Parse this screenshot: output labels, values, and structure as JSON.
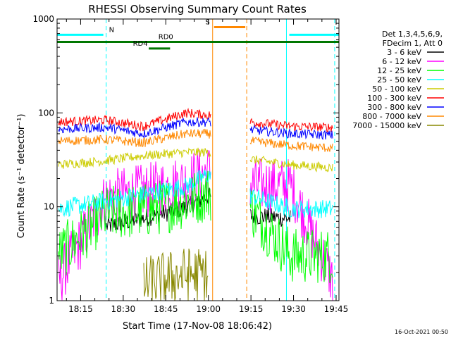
{
  "chart_data": {
    "type": "line",
    "title": "RHESSI Observing Summary Count Rates",
    "xlabel": "Start Time (17-Nov-08 18:06:42)",
    "ylabel": "Count Rate (s⁻¹ detector⁻¹)",
    "y_scale": "log",
    "ylim": [
      1,
      1000
    ],
    "xlim": [
      "18:06:42",
      "19:46:00"
    ],
    "y_ticks": [
      "1",
      "10",
      "100",
      "1000"
    ],
    "x_ticks": [
      "18:15",
      "18:30",
      "18:45",
      "19:00",
      "19:15",
      "19:30",
      "19:45"
    ],
    "legend_position": "right",
    "legend_header": [
      "Det 1,3,4,5,6,9,",
      "FDecim 1, Att 0"
    ],
    "footer": "16-Oct-2021 00:50",
    "flags": [
      {
        "label": "N",
        "color": "#00ffff",
        "segments": [
          [
            "18:06:42",
            "18:23:00"
          ],
          [
            "19:28:30",
            "19:46:00"
          ]
        ],
        "level": 680
      },
      {
        "label": "S",
        "color": "#ff8800",
        "segments": [
          [
            "19:02:00",
            "19:13:00"
          ]
        ],
        "level": 820
      },
      {
        "label": "RD0",
        "color": "#007700",
        "segments": [
          [
            "18:06:42",
            "19:46:00"
          ]
        ],
        "level": 570
      },
      {
        "label": "RD4",
        "color": "#007700",
        "segments": [
          [
            "18:39:00",
            "18:46:30"
          ]
        ],
        "level": 485
      }
    ],
    "vertical_lines": [
      {
        "time": "18:24:00",
        "color": "#00ffff",
        "style": "dashed"
      },
      {
        "time": "19:27:30",
        "color": "#00ffff",
        "style": "solid"
      },
      {
        "time": "19:44:30",
        "color": "#00ffff",
        "style": "dashed"
      },
      {
        "time": "19:01:30",
        "color": "#ff8800",
        "style": "solid"
      },
      {
        "time": "19:13:30",
        "color": "#ff8800",
        "style": "dashed"
      }
    ],
    "x": [
      "18:07",
      "18:24",
      "18:37",
      "18:52",
      "19:00",
      "19:15",
      "19:29",
      "19:44"
    ],
    "series": [
      {
        "name": "3 - 6 keV",
        "color": "#000000",
        "values": [
          null,
          6.2,
          7.5,
          9.8,
          13,
          8.0,
          7.5,
          null
        ]
      },
      {
        "name": "6 - 12 keV",
        "color": "#ff00ff",
        "values": [
          1.6,
          12.5,
          14.5,
          18.5,
          24,
          17,
          17,
          1.6
        ]
      },
      {
        "name": "12 - 25 keV",
        "color": "#00ff00",
        "values": [
          3.0,
          8.5,
          9.0,
          11.5,
          14,
          9.5,
          3.0,
          3.0
        ]
      },
      {
        "name": "25 - 50 keV",
        "color": "#00ffff",
        "values": [
          9.5,
          11.5,
          13.5,
          16.5,
          22,
          13,
          9.5,
          9.5
        ]
      },
      {
        "name": "50 - 100 keV",
        "color": "#cccc00",
        "values": [
          28,
          31,
          35,
          38,
          38,
          32,
          28,
          26
        ]
      },
      {
        "name": "100 - 300 keV",
        "color": "#ff0000",
        "values": [
          80,
          84,
          72,
          100,
          95,
          80,
          72,
          70
        ]
      },
      {
        "name": "300 - 800 keV",
        "color": "#0000ff",
        "values": [
          67,
          70,
          60,
          80,
          80,
          66,
          60,
          58
        ]
      },
      {
        "name": "800 - 7000 keV",
        "color": "#ff8800",
        "values": [
          50,
          52,
          48,
          60,
          60,
          50,
          45,
          42
        ]
      },
      {
        "name": "7000 - 15000 keV",
        "color": "#888800",
        "values": [
          null,
          null,
          1.5,
          1.9,
          1.9,
          null,
          null,
          null
        ]
      }
    ]
  }
}
